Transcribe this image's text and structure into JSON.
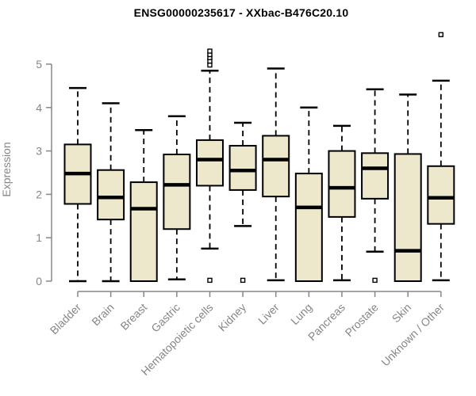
{
  "chart_data": {
    "type": "boxplot",
    "title": "ENSG00000235617 - XXbac-B476C20.10",
    "xlabel": "",
    "ylabel": "Expression",
    "ylim": [
      0,
      5.8
    ],
    "yticks": [
      0,
      1,
      2,
      3,
      4,
      5
    ],
    "grid": false,
    "legend": false,
    "categories": [
      "Bladder",
      "Brain",
      "Breast",
      "Gastric",
      "Hematopoietic cells",
      "Kidney",
      "Liver",
      "Lung",
      "Pancreas",
      "Prostate",
      "Skin",
      "Unknown / Other"
    ],
    "series": [
      {
        "category": "Bladder",
        "low": 0.0,
        "q1": 1.78,
        "median": 2.48,
        "q3": 3.15,
        "high": 4.45,
        "outliers": []
      },
      {
        "category": "Brain",
        "low": 0.0,
        "q1": 1.42,
        "median": 1.93,
        "q3": 2.56,
        "high": 4.1,
        "outliers": []
      },
      {
        "category": "Breast",
        "low": 0.0,
        "q1": 0.0,
        "median": 1.67,
        "q3": 2.28,
        "high": 3.48,
        "outliers": []
      },
      {
        "category": "Gastric",
        "low": 0.04,
        "q1": 1.2,
        "median": 2.22,
        "q3": 2.92,
        "high": 3.8,
        "outliers": []
      },
      {
        "category": "Hematopoietic cells",
        "low": 0.75,
        "q1": 2.2,
        "median": 2.8,
        "q3": 3.25,
        "high": 4.85,
        "outliers": [
          4.98,
          5.07,
          5.15,
          5.22,
          5.3,
          0.02
        ]
      },
      {
        "category": "Kidney",
        "low": 1.27,
        "q1": 2.1,
        "median": 2.55,
        "q3": 3.12,
        "high": 3.65,
        "outliers": [
          0.02
        ]
      },
      {
        "category": "Liver",
        "low": 0.02,
        "q1": 1.95,
        "median": 2.8,
        "q3": 3.35,
        "high": 4.9,
        "outliers": []
      },
      {
        "category": "Lung",
        "low": 0.0,
        "q1": 0.0,
        "median": 1.7,
        "q3": 2.48,
        "high": 4.0,
        "outliers": []
      },
      {
        "category": "Pancreas",
        "low": 0.02,
        "q1": 1.48,
        "median": 2.15,
        "q3": 3.0,
        "high": 3.58,
        "outliers": []
      },
      {
        "category": "Prostate",
        "low": 0.68,
        "q1": 1.9,
        "median": 2.6,
        "q3": 2.95,
        "high": 4.42,
        "outliers": [
          0.02
        ]
      },
      {
        "category": "Skin",
        "low": 0.0,
        "q1": 0.0,
        "median": 0.7,
        "q3": 2.93,
        "high": 4.3,
        "outliers": []
      },
      {
        "category": "Unknown / Other",
        "low": 0.02,
        "q1": 1.32,
        "median": 1.92,
        "q3": 2.65,
        "high": 4.62,
        "outliers": [
          5.68
        ]
      }
    ],
    "style": {
      "box_fill": "#EDE7CB",
      "box_stroke": "#000000",
      "median_color": "#000000",
      "whisker_color": "#000000",
      "whisker_style": "dashed",
      "outlier_shape": "open-square",
      "axis_color": "#878787",
      "tick_label_color": "#868686",
      "title_color": "#000000",
      "background": "#FFFFFF"
    }
  }
}
